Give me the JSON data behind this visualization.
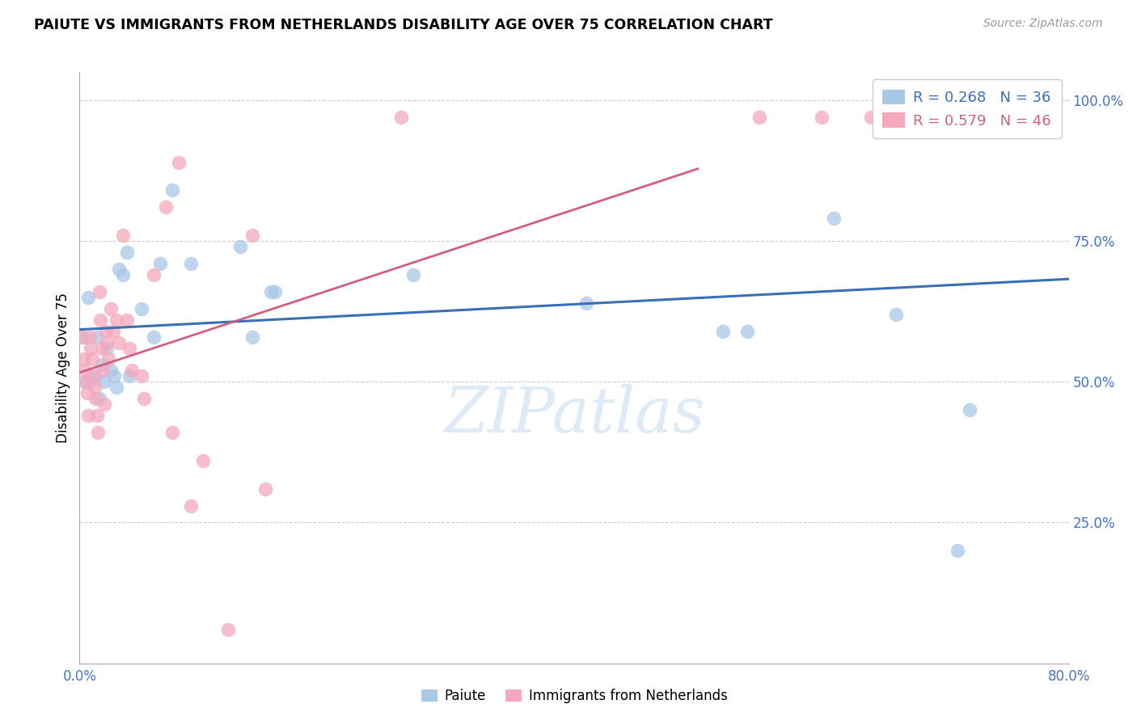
{
  "title": "PAIUTE VS IMMIGRANTS FROM NETHERLANDS DISABILITY AGE OVER 75 CORRELATION CHART",
  "source": "Source: ZipAtlas.com",
  "ylabel": "Disability Age Over 75",
  "legend_label1": "Paiute",
  "legend_label2": "Immigrants from Netherlands",
  "R1": 0.268,
  "N1": 36,
  "R2": 0.579,
  "N2": 46,
  "xlim": [
    0.0,
    0.8
  ],
  "ylim": [
    0.0,
    1.05
  ],
  "color_blue": "#a8c8e8",
  "color_pink": "#f4a8bc",
  "line_color_blue": "#3a6fb5",
  "line_color_pink": "#d06080",
  "watermark": "ZIPatlas",
  "blue_points_x": [
    0.003,
    0.004,
    0.007,
    0.009,
    0.012,
    0.014,
    0.016,
    0.018,
    0.02,
    0.022,
    0.025,
    0.028,
    0.03,
    0.032,
    0.035,
    0.038,
    0.04,
    0.05,
    0.06,
    0.065,
    0.075,
    0.09,
    0.13,
    0.14,
    0.155,
    0.158,
    0.27,
    0.41,
    0.52,
    0.54,
    0.61,
    0.66,
    0.71,
    0.72,
    0.745,
    0.755
  ],
  "blue_points_y": [
    0.58,
    0.5,
    0.65,
    0.5,
    0.51,
    0.58,
    0.47,
    0.53,
    0.5,
    0.56,
    0.52,
    0.51,
    0.49,
    0.7,
    0.69,
    0.73,
    0.51,
    0.63,
    0.58,
    0.71,
    0.84,
    0.71,
    0.74,
    0.58,
    0.66,
    0.66,
    0.69,
    0.64,
    0.59,
    0.59,
    0.79,
    0.62,
    0.2,
    0.45,
    0.97,
    0.97
  ],
  "pink_points_x": [
    0.002,
    0.003,
    0.004,
    0.005,
    0.006,
    0.007,
    0.008,
    0.009,
    0.01,
    0.011,
    0.012,
    0.013,
    0.014,
    0.015,
    0.016,
    0.017,
    0.018,
    0.019,
    0.02,
    0.021,
    0.022,
    0.023,
    0.025,
    0.027,
    0.03,
    0.032,
    0.035,
    0.038,
    0.04,
    0.042,
    0.05,
    0.052,
    0.06,
    0.07,
    0.075,
    0.08,
    0.09,
    0.1,
    0.12,
    0.14,
    0.15,
    0.26,
    0.55,
    0.6,
    0.64,
    0.65
  ],
  "pink_points_y": [
    0.58,
    0.54,
    0.52,
    0.5,
    0.48,
    0.44,
    0.58,
    0.56,
    0.54,
    0.51,
    0.49,
    0.47,
    0.44,
    0.41,
    0.66,
    0.61,
    0.56,
    0.52,
    0.46,
    0.59,
    0.57,
    0.54,
    0.63,
    0.59,
    0.61,
    0.57,
    0.76,
    0.61,
    0.56,
    0.52,
    0.51,
    0.47,
    0.69,
    0.81,
    0.41,
    0.89,
    0.28,
    0.36,
    0.06,
    0.76,
    0.31,
    0.97,
    0.97,
    0.97,
    0.97,
    0.97
  ]
}
